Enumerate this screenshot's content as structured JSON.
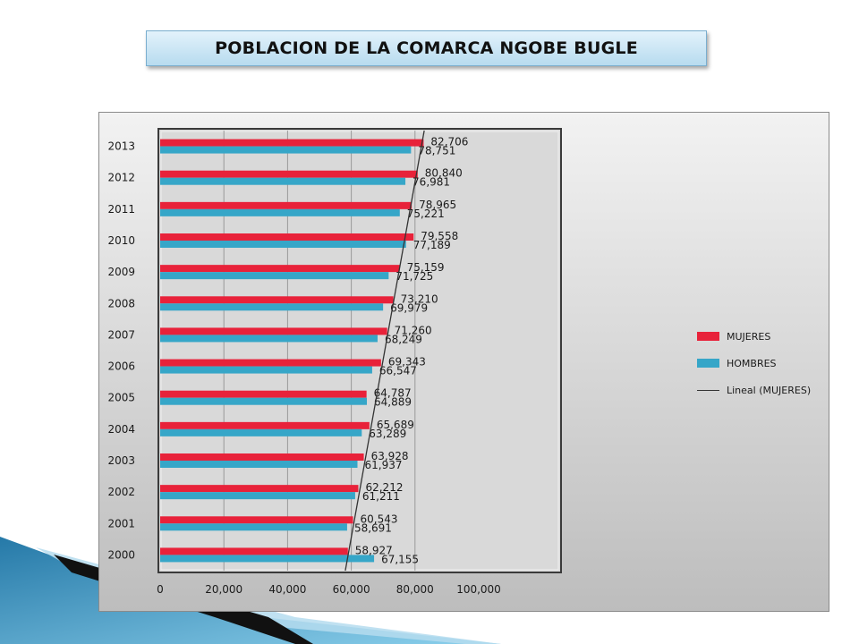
{
  "title": "POBLACION DE LA COMARCA NGOBE BUGLE",
  "colors": {
    "mujeres": "#e8223a",
    "hombres": "#36a6c8",
    "trend": "#333333",
    "accent_blue": "#2e8fc0"
  },
  "legend": {
    "mujeres": "MUJERES",
    "hombres": "HOMBRES",
    "trend": "Lineal (MUJERES)"
  },
  "chart_data": {
    "type": "bar",
    "orientation": "horizontal",
    "categories": [
      "2013",
      "2012",
      "2011",
      "2010",
      "2009",
      "2008",
      "2007",
      "2006",
      "2005",
      "2004",
      "2003",
      "2002",
      "2001",
      "2000"
    ],
    "series": [
      {
        "name": "MUJERES",
        "values": [
          82706,
          80840,
          78965,
          79558,
          75159,
          73210,
          71260,
          69343,
          64787,
          65689,
          63928,
          62212,
          60543,
          58927
        ]
      },
      {
        "name": "HOMBRES",
        "values": [
          78751,
          76981,
          75221,
          77189,
          71725,
          69979,
          68249,
          66547,
          64889,
          63289,
          61937,
          61211,
          58691,
          67155
        ]
      }
    ],
    "labels_mujeres": [
      "82,706",
      "80,840",
      "78,965",
      "79,558",
      "75,159",
      "73,210",
      "71,260",
      "69,343",
      "64,787",
      "65,689",
      "63,928",
      "62,212",
      "60,543",
      "58,927"
    ],
    "labels_hombres": [
      "78,751",
      "76,981",
      "75,221",
      "77,189",
      "71,725",
      "69,979",
      "68,249",
      "66,547",
      "64,889",
      "63,289",
      "61,937",
      "61,211",
      "58,691",
      "67,155"
    ],
    "trendline": {
      "name": "Lineal (MUJERES)",
      "type": "linear"
    },
    "xlim": [
      0,
      100000
    ],
    "xticks": [
      "0",
      "20,000",
      "40,000",
      "60,000",
      "80,000",
      "100,000"
    ],
    "grid": true,
    "legend_position": "right"
  }
}
